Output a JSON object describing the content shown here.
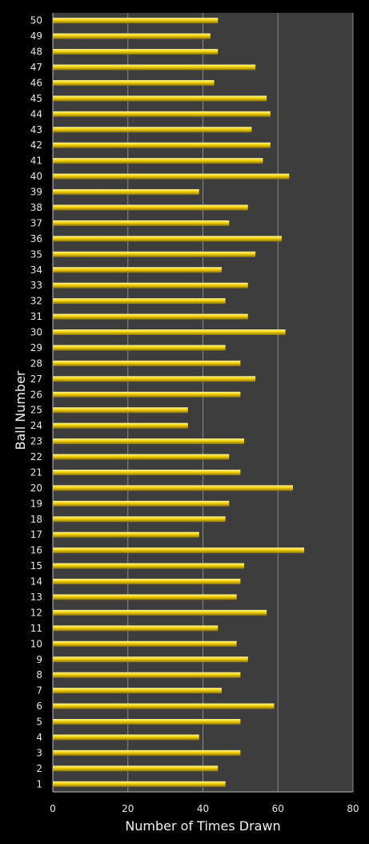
{
  "colors": {
    "background": "#000000",
    "plot_area": "#3d3d3d",
    "gridline": "#8a8a8a",
    "bar_fill": "#f2d000",
    "bar_highlight": "#fff6a0",
    "bar_shadow": "#8a7200",
    "text": "#e6e6e6"
  },
  "chart_data": {
    "type": "bar",
    "orientation": "horizontal",
    "title": "",
    "xlabel": "Number of Times Drawn",
    "ylabel": "Ball Number",
    "xlim": [
      0,
      80
    ],
    "xticks": [
      0,
      20,
      40,
      60,
      80
    ],
    "grid": true,
    "legend": "none",
    "categories": [
      "1",
      "2",
      "3",
      "4",
      "5",
      "6",
      "7",
      "8",
      "9",
      "10",
      "11",
      "12",
      "13",
      "14",
      "15",
      "16",
      "17",
      "18",
      "19",
      "20",
      "21",
      "22",
      "23",
      "24",
      "25",
      "26",
      "27",
      "28",
      "29",
      "30",
      "31",
      "32",
      "33",
      "34",
      "35",
      "36",
      "37",
      "38",
      "39",
      "40",
      "41",
      "42",
      "43",
      "44",
      "45",
      "46",
      "47",
      "48",
      "49",
      "50"
    ],
    "values": [
      46,
      44,
      50,
      39,
      50,
      59,
      45,
      50,
      52,
      49,
      44,
      57,
      49,
      50,
      51,
      67,
      39,
      46,
      47,
      64,
      50,
      47,
      51,
      36,
      36,
      50,
      54,
      50,
      46,
      62,
      52,
      46,
      52,
      45,
      54,
      61,
      47,
      52,
      39,
      63,
      56,
      58,
      53,
      58,
      57,
      43,
      54,
      44,
      42,
      44
    ]
  }
}
